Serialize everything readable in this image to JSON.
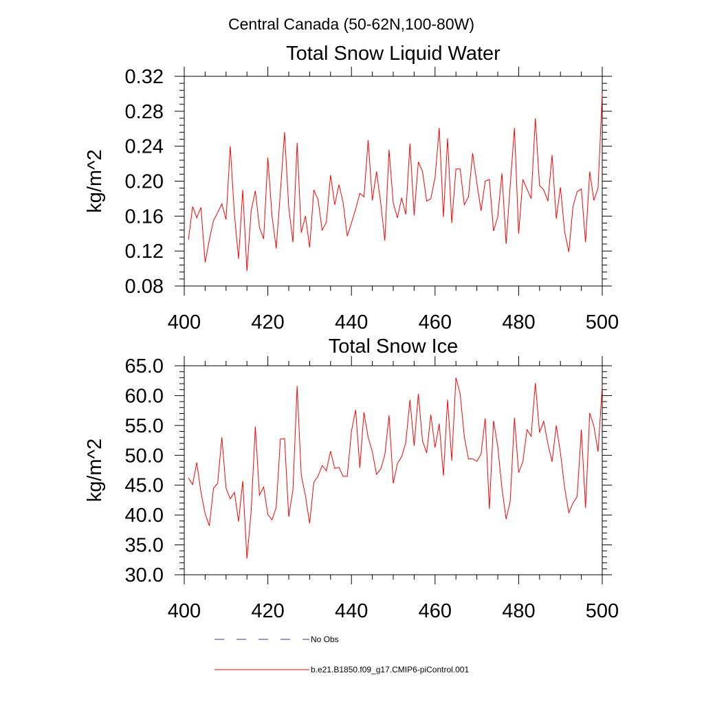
{
  "figure": {
    "title": "Central Canada (50-62N,100-80W)"
  },
  "chart_data": [
    {
      "type": "line",
      "title": "Total Snow Liquid Water",
      "xlabel": "",
      "ylabel": "kg/m^2",
      "xlim": [
        400,
        500
      ],
      "ylim": [
        0.08,
        0.32
      ],
      "xticks": [
        400,
        420,
        440,
        460,
        480,
        500
      ],
      "yticks": [
        0.08,
        0.12,
        0.16,
        0.2,
        0.24,
        0.28,
        0.32
      ],
      "xtick_labels": [
        "400",
        "420",
        "440",
        "460",
        "480",
        "500"
      ],
      "ytick_labels": [
        "0.08",
        "0.12",
        "0.16",
        "0.20",
        "0.24",
        "0.28",
        "0.32"
      ],
      "series": [
        {
          "name": "b.e21.B1850.f09_g17.CMIP6-piControl.001",
          "color": "#ff0000",
          "x": [
            401,
            402,
            403,
            404,
            405,
            406,
            407,
            408,
            409,
            410,
            411,
            412,
            413,
            414,
            415,
            416,
            417,
            418,
            419,
            420,
            421,
            422,
            423,
            424,
            425,
            426,
            427,
            428,
            429,
            430,
            431,
            432,
            433,
            434,
            435,
            436,
            437,
            438,
            439,
            440,
            441,
            442,
            443,
            444,
            445,
            446,
            447,
            448,
            449,
            450,
            451,
            452,
            453,
            454,
            455,
            456,
            457,
            458,
            459,
            460,
            461,
            462,
            463,
            464,
            465,
            466,
            467,
            468,
            469,
            470,
            471,
            472,
            473,
            474,
            475,
            476,
            477,
            478,
            479,
            480,
            481,
            482,
            483,
            484,
            485,
            486,
            487,
            488,
            489,
            490,
            491,
            492,
            493,
            494,
            495,
            496,
            497,
            498,
            499,
            500
          ],
          "y": [
            0.133,
            0.171,
            0.158,
            0.17,
            0.107,
            0.133,
            0.155,
            0.164,
            0.174,
            0.156,
            0.24,
            0.162,
            0.111,
            0.19,
            0.097,
            0.166,
            0.189,
            0.147,
            0.134,
            0.227,
            0.16,
            0.123,
            0.187,
            0.256,
            0.17,
            0.13,
            0.244,
            0.141,
            0.16,
            0.124,
            0.19,
            0.179,
            0.144,
            0.153,
            0.207,
            0.173,
            0.196,
            0.176,
            0.137,
            0.152,
            0.168,
            0.186,
            0.182,
            0.247,
            0.178,
            0.211,
            0.175,
            0.132,
            0.236,
            0.175,
            0.158,
            0.181,
            0.162,
            0.243,
            0.161,
            0.222,
            0.211,
            0.177,
            0.18,
            0.204,
            0.261,
            0.159,
            0.249,
            0.152,
            0.214,
            0.214,
            0.173,
            0.182,
            0.232,
            0.198,
            0.166,
            0.2,
            0.202,
            0.143,
            0.159,
            0.209,
            0.128,
            0.196,
            0.261,
            0.14,
            0.202,
            0.191,
            0.18,
            0.272,
            0.195,
            0.19,
            0.177,
            0.23,
            0.157,
            0.193,
            0.142,
            0.119,
            0.171,
            0.188,
            0.191,
            0.13,
            0.211,
            0.178,
            0.192,
            0.3
          ]
        },
        {
          "name": "No Obs",
          "color": "#1f3f8f",
          "x": [],
          "y": []
        }
      ]
    },
    {
      "type": "line",
      "title": "Total Snow Ice",
      "xlabel": "",
      "ylabel": "kg/m^2",
      "xlim": [
        400,
        500
      ],
      "ylim": [
        30.0,
        65.0
      ],
      "xticks": [
        400,
        420,
        440,
        460,
        480,
        500
      ],
      "yticks": [
        30,
        35,
        40,
        45,
        50,
        55,
        60,
        65
      ],
      "xtick_labels": [
        "400",
        "420",
        "440",
        "460",
        "480",
        "500"
      ],
      "ytick_labels": [
        "30.0",
        "35.0",
        "40.0",
        "45.0",
        "50.0",
        "55.0",
        "60.0",
        "65.0"
      ],
      "series": [
        {
          "name": "b.e21.B1850.f09_g17.CMIP6-piControl.001",
          "color": "#ff0000",
          "x": [
            401,
            402,
            403,
            404,
            405,
            406,
            407,
            408,
            409,
            410,
            411,
            412,
            413,
            414,
            415,
            416,
            417,
            418,
            419,
            420,
            421,
            422,
            423,
            424,
            425,
            426,
            427,
            428,
            429,
            430,
            431,
            432,
            433,
            434,
            435,
            436,
            437,
            438,
            439,
            440,
            441,
            442,
            443,
            444,
            445,
            446,
            447,
            448,
            449,
            450,
            451,
            452,
            453,
            454,
            455,
            456,
            457,
            458,
            459,
            460,
            461,
            462,
            463,
            464,
            465,
            466,
            467,
            468,
            469,
            470,
            471,
            472,
            473,
            474,
            475,
            476,
            477,
            478,
            479,
            480,
            481,
            482,
            483,
            484,
            485,
            486,
            487,
            488,
            489,
            490,
            491,
            492,
            493,
            494,
            495,
            496,
            497,
            498,
            499,
            500
          ],
          "y": [
            46.2,
            45.1,
            48.8,
            43.8,
            40.2,
            38.2,
            44.5,
            45.3,
            53.0,
            44.5,
            42.7,
            43.8,
            38.9,
            45.7,
            32.7,
            40.6,
            54.8,
            43.3,
            44.7,
            40.1,
            39.2,
            41.3,
            52.7,
            52.8,
            39.7,
            44.2,
            61.6,
            46.7,
            43.2,
            38.6,
            45.5,
            46.5,
            48.3,
            47.4,
            50.7,
            47.8,
            48.0,
            46.5,
            46.5,
            54.0,
            57.6,
            47.9,
            57.2,
            53.0,
            50.6,
            46.8,
            47.7,
            50.1,
            56.7,
            45.3,
            48.6,
            49.8,
            52.1,
            59.3,
            51.6,
            60.3,
            52.4,
            50.4,
            56.8,
            51.3,
            55.3,
            46.6,
            59.3,
            49.1,
            63.0,
            60.3,
            53.1,
            49.4,
            49.4,
            49.0,
            50.2,
            56.2,
            41.0,
            55.8,
            51.5,
            44.5,
            39.3,
            42.4,
            56.3,
            47.1,
            48.9,
            54.3,
            53.2,
            62.1,
            53.8,
            55.7,
            51.9,
            48.9,
            55.0,
            50.4,
            44.6,
            40.4,
            42.0,
            43.1,
            54.3,
            41.2,
            57.1,
            54.9,
            50.6,
            61.6
          ]
        },
        {
          "name": "No Obs",
          "color": "#1f3f8f",
          "x": [],
          "y": []
        }
      ]
    }
  ],
  "legend": {
    "items": [
      {
        "label": "No Obs",
        "style": "dashed",
        "color": "#1f3f8f"
      },
      {
        "label": "b.e21.B1850.f09_g17.CMIP6-piControl.001",
        "style": "solid",
        "color": "#ff0000"
      }
    ]
  }
}
